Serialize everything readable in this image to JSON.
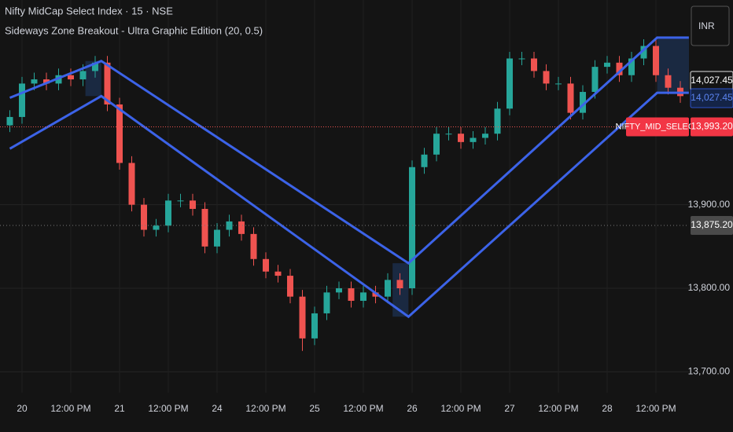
{
  "chart_data": {
    "type": "candlestick",
    "title": "Nifty MidCap Select Index · 15 · NSE",
    "subtitle": "Sideways Zone Breakout - Ultra Graphic Edition (20, 0.5)",
    "currency": "INR",
    "categories": [
      null,
      "20",
      null,
      null,
      null,
      "12:00 PM",
      null,
      null,
      null,
      "21",
      null,
      null,
      null,
      "12:00 PM",
      null,
      null,
      null,
      "24",
      null,
      null,
      null,
      "12:00 PM",
      null,
      null,
      null,
      "25",
      null,
      null,
      null,
      "12:00 PM",
      null,
      null,
      null,
      "26",
      null,
      null,
      null,
      "12:00 PM",
      null,
      null,
      null,
      "27",
      null,
      null,
      null,
      "12:00 PM",
      null,
      null,
      null,
      "28",
      null,
      null,
      null,
      "12:00 PM",
      null,
      null
    ],
    "open": [
      13995,
      14005,
      14045,
      14050,
      14045,
      14055,
      14050,
      14060,
      14070,
      14020,
      13950,
      13900,
      13870,
      13875,
      13905,
      13905,
      13895,
      13850,
      13870,
      13880,
      13865,
      13835,
      13820,
      13815,
      13790,
      13740,
      13770,
      13795,
      13800,
      13785,
      13795,
      13790,
      13810,
      13800,
      13945,
      13960,
      13985,
      13985,
      13975,
      13980,
      13985,
      14015,
      14075,
      14075,
      14060,
      14045,
      14045,
      14010,
      14035,
      14065,
      14070,
      14055,
      14075,
      14090,
      14055,
      14040
    ],
    "high": [
      14013,
      14053,
      14058,
      14058,
      14063,
      14063,
      14068,
      14078,
      14078,
      14028,
      13958,
      13908,
      13883,
      13913,
      13913,
      13913,
      13903,
      13878,
      13888,
      13888,
      13873,
      13843,
      13828,
      13823,
      13798,
      13778,
      13803,
      13808,
      13808,
      13803,
      13803,
      13818,
      13818,
      13953,
      13968,
      13993,
      13993,
      13993,
      13988,
      13993,
      14023,
      14083,
      14083,
      14083,
      14068,
      14053,
      14053,
      14043,
      14073,
      14078,
      14078,
      14083,
      14098,
      14098,
      14063,
      14048
    ],
    "low": [
      13987,
      13997,
      14037,
      14037,
      14037,
      14042,
      14042,
      14052,
      14012,
      13942,
      13892,
      13862,
      13862,
      13867,
      13897,
      13887,
      13842,
      13842,
      13862,
      13857,
      13827,
      13812,
      13807,
      13782,
      13725,
      13732,
      13762,
      13787,
      13777,
      13777,
      13782,
      13782,
      13792,
      13792,
      13937,
      13952,
      13977,
      13967,
      13967,
      13972,
      13977,
      14007,
      14067,
      14052,
      14037,
      14037,
      14002,
      14002,
      14027,
      14057,
      14047,
      14047,
      14067,
      14047,
      14032,
      14022
    ],
    "close": [
      14005,
      14045,
      14050,
      14045,
      14055,
      14050,
      14060,
      14070,
      14020,
      13950,
      13900,
      13870,
      13875,
      13905,
      13905,
      13895,
      13850,
      13870,
      13880,
      13865,
      13835,
      13820,
      13815,
      13790,
      13740,
      13770,
      13795,
      13800,
      13785,
      13795,
      13790,
      13810,
      13800,
      13945,
      13960,
      13985,
      13985,
      13975,
      13980,
      13985,
      14015,
      14075,
      14075,
      14060,
      14045,
      14045,
      14010,
      14035,
      14065,
      14070,
      14055,
      14075,
      14090,
      14055,
      14040,
      14030
    ],
    "up_color": "#26a69a",
    "down_color": "#ef5350",
    "channel": {
      "color": "#3c63e8",
      "x": [
        0,
        7.5,
        32.7,
        53.1,
        55.7
      ],
      "upper": [
        14028,
        14072,
        13830,
        14100,
        14100
      ],
      "lower": [
        13967,
        14030,
        13766,
        14034,
        14034
      ]
    },
    "ylim": [
      13675,
      14145
    ],
    "yticks": [
      {
        "value": 13700,
        "label": "13,700.00"
      },
      {
        "value": 13800,
        "label": "13,800.00"
      },
      {
        "value": 13900,
        "label": "13,900.00"
      }
    ],
    "grid": true,
    "last_price": {
      "value": 14027.45,
      "label": "14,027.45"
    },
    "indicator_price": {
      "value": 14027.45,
      "label": "14,027.45"
    },
    "symbol_tag": "NIFTY_MID_SELECT",
    "symbol_price": {
      "value": 13993.2,
      "label": "13,993.20"
    },
    "cursor_price": {
      "value": 13875.2,
      "label": "13,875.20"
    }
  }
}
